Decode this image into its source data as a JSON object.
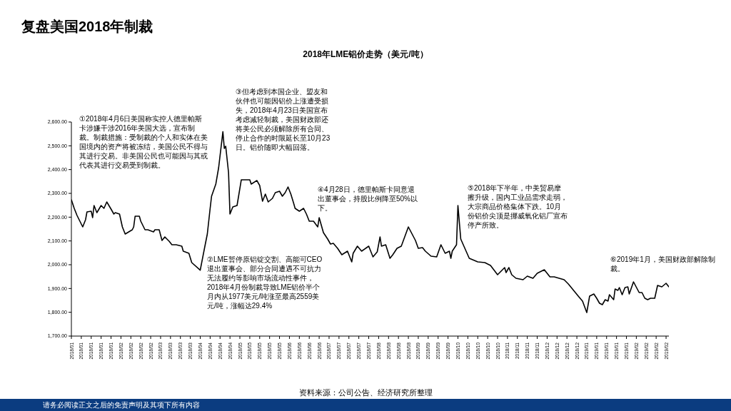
{
  "chart_data": {
    "type": "line",
    "title": "复盘美国2018年制裁",
    "subtitle": "2018年LME铝价走势（美元/吨）",
    "annotations": [
      "①2018年4月6日美国称实控人德里帕斯卡涉嫌干涉2016年美国大选，宣布制裁。制裁措施：受制裁的个人和实体在美国境内的资产将被冻结，美国公民不得与其进行交易。非美国公民也可能因与其或代表其进行交易受到制裁。",
      "②LME暂停原铝锭交割、高能可CEO退出董事会、部分合同遭遇不可抗力无法履约等影响市场流动性事件，2018年4月份制裁导致LME铝价半个月内从1977美元/吨涨至最高2559美元/吨，涨幅达29.4%",
      "③但考虑到本国企业、盟友和伙伴也可能因铝价上涨遭受损失，2018年4月23日美国宣布考虑减轻制裁，美国财政部还将美公民必须解除所有合同、停止合作的时限延长至10月23日。铝价随即大幅回落。",
      "④4月28日，德里帕斯卡同意退出董事会，持股比例降至50%以下。",
      "⑤2018年下半年，中美贸易摩擦升级，国内工业品需求走弱，大宗商品价格集体下跌。10月份铝价尖顶是挪威氧化铝厂宣布停产所致。",
      "⑥2019年1月，美国财政部解除制裁。",
      "资料来源：公司公告、经济研究所整理",
      "请务必阅读正文之后的免责声明及其项下所有内容"
    ],
    "color": "#000000",
    "x": [
      "2018-01-02",
      "2018-01-04",
      "2018-01-06",
      "2018-01-10",
      "2018-01-12",
      "2018-01-13",
      "2018-01-16",
      "2018-01-17",
      "2018-01-18",
      "2018-01-20",
      "2018-01-23",
      "2018-01-25",
      "2018-01-27",
      "2018-01-30",
      "2018-02-01",
      "2018-02-02",
      "2018-02-05",
      "2018-02-07",
      "2018-02-09",
      "2018-02-14",
      "2018-02-15",
      "2018-02-16",
      "2018-02-19",
      "2018-02-20",
      "2018-02-23",
      "2018-02-25",
      "2018-03-01",
      "2018-03-02",
      "2018-03-05",
      "2018-03-07",
      "2018-03-09",
      "2018-03-12",
      "2018-03-14",
      "2018-03-17",
      "2018-03-21",
      "2018-03-22",
      "2018-03-26",
      "2018-03-28",
      "2018-04-03",
      "2018-04-06",
      "2018-04-08",
      "2018-04-10",
      "2018-04-11",
      "2018-04-14",
      "2018-04-16",
      "2018-04-19",
      "2018-04-20",
      "2018-04-21",
      "2018-04-23",
      "2018-04-24",
      "2018-04-26",
      "2018-04-29",
      "2018-05-02",
      "2018-05-04",
      "2018-05-08",
      "2018-05-09",
      "2018-05-13",
      "2018-05-15",
      "2018-05-17",
      "2018-05-19",
      "2018-05-21",
      "2018-05-24",
      "2018-05-26",
      "2018-05-29",
      "2018-05-31",
      "2018-06-02",
      "2018-06-04",
      "2018-06-06",
      "2018-06-08",
      "2018-06-09",
      "2018-06-12",
      "2018-06-15",
      "2018-06-17",
      "2018-06-19",
      "2018-06-22",
      "2018-06-25",
      "2018-06-26",
      "2018-06-29",
      "2018-07-02",
      "2018-07-04",
      "2018-07-06",
      "2018-07-09",
      "2018-07-12",
      "2018-07-16",
      "2018-07-19",
      "2018-07-20",
      "2018-07-23",
      "2018-07-26",
      "2018-07-31",
      "2018-08-03",
      "2018-08-06",
      "2018-08-08",
      "2018-08-09",
      "2018-08-12",
      "2018-08-15",
      "2018-08-17",
      "2018-08-20",
      "2018-08-23",
      "2018-08-28",
      "2018-09-02",
      "2018-09-04",
      "2018-09-07",
      "2018-09-09",
      "2018-09-13",
      "2018-09-17",
      "2018-09-20",
      "2018-09-23",
      "2018-09-26",
      "2018-09-27",
      "2018-09-28",
      "2018-10-01",
      "2018-10-02",
      "2018-10-04",
      "2018-10-10",
      "2018-10-16",
      "2018-10-21",
      "2018-10-25",
      "2018-10-30",
      "2018-11-04",
      "2018-11-05",
      "2018-11-07",
      "2018-11-09",
      "2018-11-12",
      "2018-11-17",
      "2018-11-20",
      "2018-11-24",
      "2018-11-27",
      "2018-12-02",
      "2018-12-06",
      "2018-12-09",
      "2018-12-16",
      "2018-12-19",
      "2018-12-26",
      "2018-12-29",
      "2019-01-01",
      "2019-01-03",
      "2019-01-06",
      "2019-01-08",
      "2019-01-10",
      "2019-01-12",
      "2019-01-14",
      "2019-01-16",
      "2019-01-17",
      "2019-01-20",
      "2019-01-21",
      "2019-01-23",
      "2019-01-24",
      "2019-01-26",
      "2019-01-28",
      "2019-01-30",
      "2019-01-31",
      "2019-02-03",
      "2019-02-07",
      "2019-02-09",
      "2019-02-11",
      "2019-02-13",
      "2019-02-15",
      "2019-02-18",
      "2019-02-20",
      "2019-02-23",
      "2019-02-26",
      "2019-02-28"
    ],
    "values": [
      2273,
      2237,
      2207,
      2159,
      2189,
      2222,
      2225,
      2198,
      2249,
      2219,
      2249,
      2237,
      2264,
      2234,
      2213,
      2219,
      2213,
      2159,
      2129,
      2147,
      2159,
      2204,
      2204,
      2183,
      2147,
      2147,
      2138,
      2147,
      2147,
      2102,
      2117,
      2099,
      2084,
      2084,
      2078,
      2057,
      2048,
      2009,
      1977,
      2069,
      2129,
      2237,
      2288,
      2339,
      2408,
      2559,
      2489,
      2498,
      2387,
      2213,
      2243,
      2249,
      2357,
      2357,
      2357,
      2339,
      2354,
      2333,
      2267,
      2297,
      2264,
      2279,
      2303,
      2309,
      2288,
      2303,
      2327,
      2297,
      2258,
      2237,
      2225,
      2237,
      2213,
      2183,
      2183,
      2159,
      2198,
      2135,
      2108,
      2087,
      2090,
      2069,
      2042,
      2057,
      2012,
      2048,
      2078,
      2057,
      2078,
      2033,
      2054,
      2117,
      2078,
      2084,
      2027,
      2042,
      2069,
      2078,
      2159,
      2102,
      2069,
      2072,
      2057,
      2036,
      2033,
      2084,
      2048,
      2057,
      2027,
      2057,
      2084,
      2249,
      2108,
      2027,
      2012,
      2009,
      1997,
      1958,
      1988,
      1967,
      1988,
      1958,
      1943,
      1937,
      1952,
      1943,
      1964,
      1979,
      1949,
      1949,
      1937,
      1919,
      1868,
      1847,
      1799,
      1868,
      1877,
      1859,
      1838,
      1832,
      1853,
      1847,
      1874,
      1853,
      1898,
      1892,
      1904,
      1874,
      1904,
      1907,
      1877,
      1928,
      1883,
      1883,
      1859,
      1853,
      1859,
      1859,
      1913,
      1907,
      1922,
      1907
    ],
    "xlim": [
      "2018-01-02",
      "2019-02-28"
    ],
    "xticks": [
      {
        "value": "2018-01-02",
        "label": "2018/01"
      },
      {
        "value": "2018-01-09",
        "label": "2018/01"
      },
      {
        "value": "2018-01-16",
        "label": "2018/01"
      },
      {
        "value": "2018-01-23",
        "label": "2018/01"
      },
      {
        "value": "2018-01-30",
        "label": "2018/01"
      },
      {
        "value": "2018-02-06",
        "label": "2018/02"
      },
      {
        "value": "2018-02-13",
        "label": "2018/02"
      },
      {
        "value": "2018-02-20",
        "label": "2018/02"
      },
      {
        "value": "2018-02-27",
        "label": "2018/02"
      },
      {
        "value": "2018-03-06",
        "label": "2018/03"
      },
      {
        "value": "2018-03-13",
        "label": "2018/03"
      },
      {
        "value": "2018-03-20",
        "label": "2018/03"
      },
      {
        "value": "2018-03-27",
        "label": "2018/03"
      },
      {
        "value": "2018-04-03",
        "label": "2018/04"
      },
      {
        "value": "2018-04-10",
        "label": "2018/04"
      },
      {
        "value": "2018-04-17",
        "label": "2018/04"
      },
      {
        "value": "2018-04-24",
        "label": "2018/04"
      },
      {
        "value": "2018-05-01",
        "label": "2018/05"
      },
      {
        "value": "2018-05-08",
        "label": "2018/05"
      },
      {
        "value": "2018-05-15",
        "label": "2018/05"
      },
      {
        "value": "2018-05-22",
        "label": "2018/05"
      },
      {
        "value": "2018-05-29",
        "label": "2018/05"
      },
      {
        "value": "2018-06-05",
        "label": "2018/06"
      },
      {
        "value": "2018-06-12",
        "label": "2018/06"
      },
      {
        "value": "2018-06-19",
        "label": "2018/06"
      },
      {
        "value": "2018-06-26",
        "label": "2018/06"
      },
      {
        "value": "2018-07-03",
        "label": "2018/07"
      },
      {
        "value": "2018-07-10",
        "label": "2018/07"
      },
      {
        "value": "2018-07-17",
        "label": "2018/07"
      },
      {
        "value": "2018-07-24",
        "label": "2018/07"
      },
      {
        "value": "2018-07-31",
        "label": "2018/07"
      },
      {
        "value": "2018-08-07",
        "label": "2018/08"
      },
      {
        "value": "2018-08-14",
        "label": "2018/08"
      },
      {
        "value": "2018-08-21",
        "label": "2018/08"
      },
      {
        "value": "2018-08-28",
        "label": "2018/08"
      },
      {
        "value": "2018-09-04",
        "label": "2018/09"
      },
      {
        "value": "2018-09-11",
        "label": "2018/09"
      },
      {
        "value": "2018-09-18",
        "label": "2018/09"
      },
      {
        "value": "2018-09-25",
        "label": "2018/09"
      },
      {
        "value": "2018-10-02",
        "label": "2018/10"
      },
      {
        "value": "2018-10-09",
        "label": "2018/10"
      },
      {
        "value": "2018-10-16",
        "label": "2018/10"
      },
      {
        "value": "2018-10-23",
        "label": "2018/10"
      },
      {
        "value": "2018-10-30",
        "label": "2018/10"
      },
      {
        "value": "2018-11-06",
        "label": "2018/11"
      },
      {
        "value": "2018-11-13",
        "label": "2018/11"
      },
      {
        "value": "2018-11-20",
        "label": "2018/11"
      },
      {
        "value": "2018-11-27",
        "label": "2018/11"
      },
      {
        "value": "2018-12-04",
        "label": "2018/12"
      },
      {
        "value": "2018-12-11",
        "label": "2018/12"
      },
      {
        "value": "2018-12-18",
        "label": "2018/12"
      },
      {
        "value": "2018-12-25",
        "label": "2018/12"
      },
      {
        "value": "2019-01-01",
        "label": "2019/01"
      },
      {
        "value": "2019-01-08",
        "label": "2019/01"
      },
      {
        "value": "2019-01-15",
        "label": "2019/01"
      },
      {
        "value": "2019-01-22",
        "label": "2019/01"
      },
      {
        "value": "2019-01-29",
        "label": "2019/01"
      },
      {
        "value": "2019-02-05",
        "label": "2019/02"
      },
      {
        "value": "2019-02-12",
        "label": "2019/02"
      },
      {
        "value": "2019-02-19",
        "label": "2019/02"
      },
      {
        "value": "2019-02-26",
        "label": "2019/02"
      }
    ],
    "ylim": [
      1700,
      2600
    ],
    "yticks": [
      {
        "value": 1700,
        "label": "1,700.00"
      },
      {
        "value": 1800,
        "label": "1,800.00"
      },
      {
        "value": 1900,
        "label": "1,900.00"
      },
      {
        "value": 2000,
        "label": "2,000.00"
      },
      {
        "value": 2100,
        "label": "2,100.00"
      },
      {
        "value": 2200,
        "label": "2,200.00"
      },
      {
        "value": 2300,
        "label": "2,300.00"
      },
      {
        "value": 2400,
        "label": "2,400.00"
      },
      {
        "value": 2500,
        "label": "2,500.00"
      },
      {
        "value": 2600,
        "label": "2,600.00"
      }
    ]
  }
}
